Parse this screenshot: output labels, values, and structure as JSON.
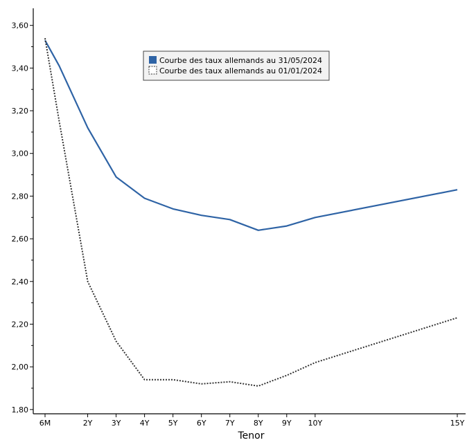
{
  "chart_data": {
    "type": "line",
    "title": "",
    "xlabel": "Tenor",
    "ylabel": "",
    "categories": [
      "6M",
      "2Y",
      "3Y",
      "4Y",
      "5Y",
      "6Y",
      "7Y",
      "8Y",
      "9Y",
      "10Y",
      "15Y"
    ],
    "x": [
      0.5,
      2,
      3,
      4,
      5,
      6,
      7,
      8,
      9,
      10,
      15
    ],
    "ylim": [
      1.78,
      3.68
    ],
    "yticks": [
      1.8,
      2.0,
      2.2,
      2.4,
      2.6,
      2.8,
      3.0,
      3.2,
      3.4,
      3.6
    ],
    "ytick_labels": [
      "1,80",
      "2,00",
      "2,20",
      "2,40",
      "2,60",
      "2,80",
      "3,00",
      "3,20",
      "3,40",
      "3,60"
    ],
    "legend_position": "top-center",
    "grid": false,
    "series": [
      {
        "name": "Courbe des taux allemands au 31/05/2024",
        "color": "#2e63a5",
        "style": "solid",
        "x": [
          0.5,
          1,
          2,
          3,
          4,
          5,
          6,
          7,
          8,
          9,
          10,
          15
        ],
        "values": [
          3.53,
          3.41,
          3.12,
          2.89,
          2.79,
          2.74,
          2.71,
          2.69,
          2.64,
          2.66,
          2.7,
          2.83
        ]
      },
      {
        "name": "Courbe des taux allemands au 01/01/2024",
        "color": "#333333",
        "style": "dotted",
        "x": [
          0.5,
          1,
          2,
          3,
          4,
          5,
          6,
          7,
          8,
          9,
          10,
          15
        ],
        "values": [
          3.54,
          3.15,
          2.4,
          2.12,
          1.94,
          1.94,
          1.92,
          1.93,
          1.91,
          1.96,
          2.02,
          2.23
        ]
      }
    ]
  }
}
